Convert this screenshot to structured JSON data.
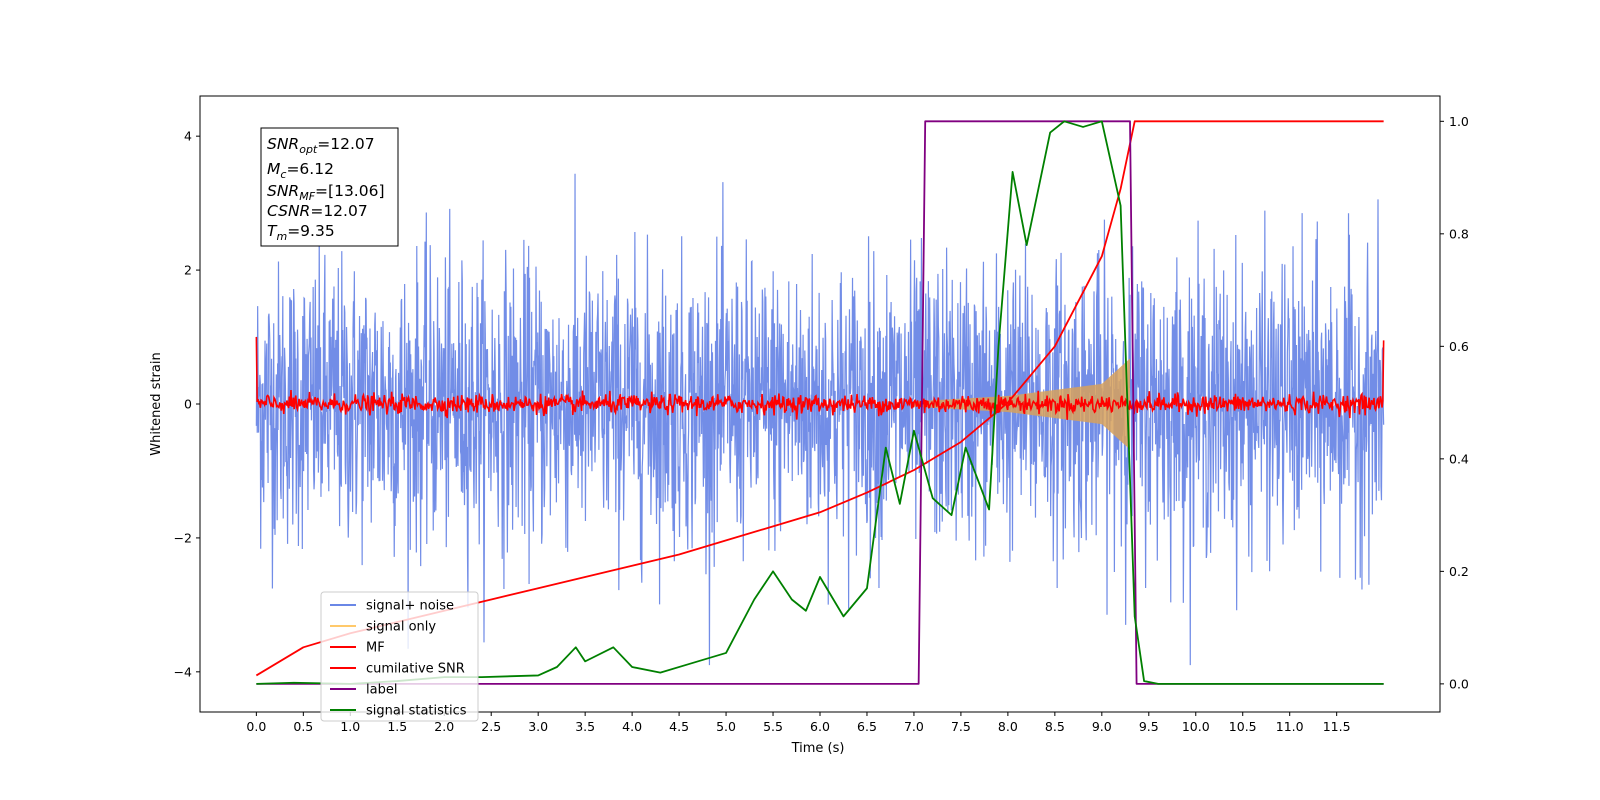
{
  "chart_data": {
    "type": "line",
    "xlabel": "Time (s)",
    "ylabel": "Whitened strain",
    "ylabel_right": "",
    "xlim": [
      -0.6,
      12.6
    ],
    "ylim": [
      -4.6,
      4.6
    ],
    "ylim_right": [
      -0.05,
      1.045
    ],
    "x_ticks": [
      "0.0",
      "0.5",
      "1.0",
      "1.5",
      "2.0",
      "2.5",
      "3.0",
      "3.5",
      "4.0",
      "4.5",
      "5.0",
      "5.5",
      "6.0",
      "6.5",
      "7.0",
      "7.5",
      "8.0",
      "8.5",
      "9.0",
      "9.5",
      "10.0",
      "10.5",
      "11.0",
      "11.5"
    ],
    "y_ticks_left": [
      "−4",
      "−2",
      "0",
      "2",
      "4"
    ],
    "y_ticks_right": [
      "0.0",
      "0.2",
      "0.4",
      "0.6",
      "0.8",
      "1.0"
    ],
    "annotation": {
      "snr_opt": "SNR",
      "snr_opt_sub": "opt",
      "snr_opt_val": "=12.07",
      "mc": "M",
      "mc_sub": "c",
      "mc_val": "=6.12",
      "snr_mf": "SNR",
      "snr_mf_sub": "MF",
      "snr_mf_val": "=[13.06]",
      "csnr": "CSNR",
      "csnr_val": "=12.07",
      "tm": "T",
      "tm_sub": "m",
      "tm_val": "=9.35"
    },
    "series": [
      {
        "name": "signal+ noise",
        "color": "#6a87e6",
        "description_axis": "left",
        "noise_amplitude": 1.0,
        "x_range": [
          0.0,
          12.0
        ]
      },
      {
        "name": "signal only",
        "color": "#ffc96b",
        "axis": "left",
        "envelope": [
          [
            7.0,
            0.04
          ],
          [
            8.0,
            0.12
          ],
          [
            9.0,
            0.3
          ],
          [
            9.3,
            0.68
          ]
        ]
      },
      {
        "name": "MF",
        "color": "#ff0000",
        "axis": "left",
        "baseline": 0.0,
        "noise_amplitude": 0.07
      },
      {
        "name": "cumilative SNR",
        "color": "#ff0000",
        "axis": "right",
        "x": [
          0.0,
          0.5,
          1.0,
          1.5,
          2.0,
          2.5,
          3.0,
          3.5,
          4.0,
          4.5,
          5.0,
          5.5,
          6.0,
          6.5,
          7.0,
          7.5,
          8.0,
          8.5,
          9.0,
          9.2,
          9.35,
          12.0
        ],
        "y": [
          0.015,
          0.065,
          0.09,
          0.11,
          0.13,
          0.15,
          0.17,
          0.19,
          0.21,
          0.23,
          0.255,
          0.28,
          0.305,
          0.34,
          0.38,
          0.43,
          0.5,
          0.6,
          0.76,
          0.88,
          1.0,
          1.0
        ]
      },
      {
        "name": "label",
        "color": "#800080",
        "axis": "right",
        "x": [
          0.0,
          7.05,
          7.12,
          9.3,
          9.37,
          12.0
        ],
        "y": [
          0.0,
          0.0,
          1.0,
          1.0,
          0.0,
          0.0
        ]
      },
      {
        "name": "signal statistics",
        "color": "#008000",
        "axis": "right",
        "x": [
          0.0,
          0.4,
          1.0,
          1.5,
          2.0,
          2.4,
          3.0,
          3.2,
          3.4,
          3.5,
          3.8,
          4.0,
          4.3,
          4.6,
          5.0,
          5.3,
          5.5,
          5.7,
          5.85,
          6.0,
          6.25,
          6.5,
          6.7,
          6.85,
          7.0,
          7.2,
          7.4,
          7.55,
          7.8,
          7.9,
          8.05,
          8.2,
          8.45,
          8.6,
          8.8,
          9.0,
          9.2,
          9.35,
          9.45,
          9.6,
          12.0
        ],
        "y": [
          0.0,
          0.002,
          0.0,
          0.005,
          0.012,
          0.012,
          0.015,
          0.03,
          0.065,
          0.04,
          0.065,
          0.03,
          0.02,
          0.035,
          0.055,
          0.15,
          0.2,
          0.15,
          0.13,
          0.19,
          0.12,
          0.17,
          0.42,
          0.32,
          0.45,
          0.33,
          0.3,
          0.42,
          0.31,
          0.6,
          0.91,
          0.78,
          0.98,
          1.0,
          0.99,
          1.0,
          0.85,
          0.12,
          0.005,
          0.0,
          0.0
        ]
      }
    ],
    "legend": [
      "signal+ noise",
      "signal only",
      "MF",
      "cumilative SNR",
      "label",
      "signal statistics"
    ],
    "legend_position": "lower-left",
    "grid": false
  }
}
